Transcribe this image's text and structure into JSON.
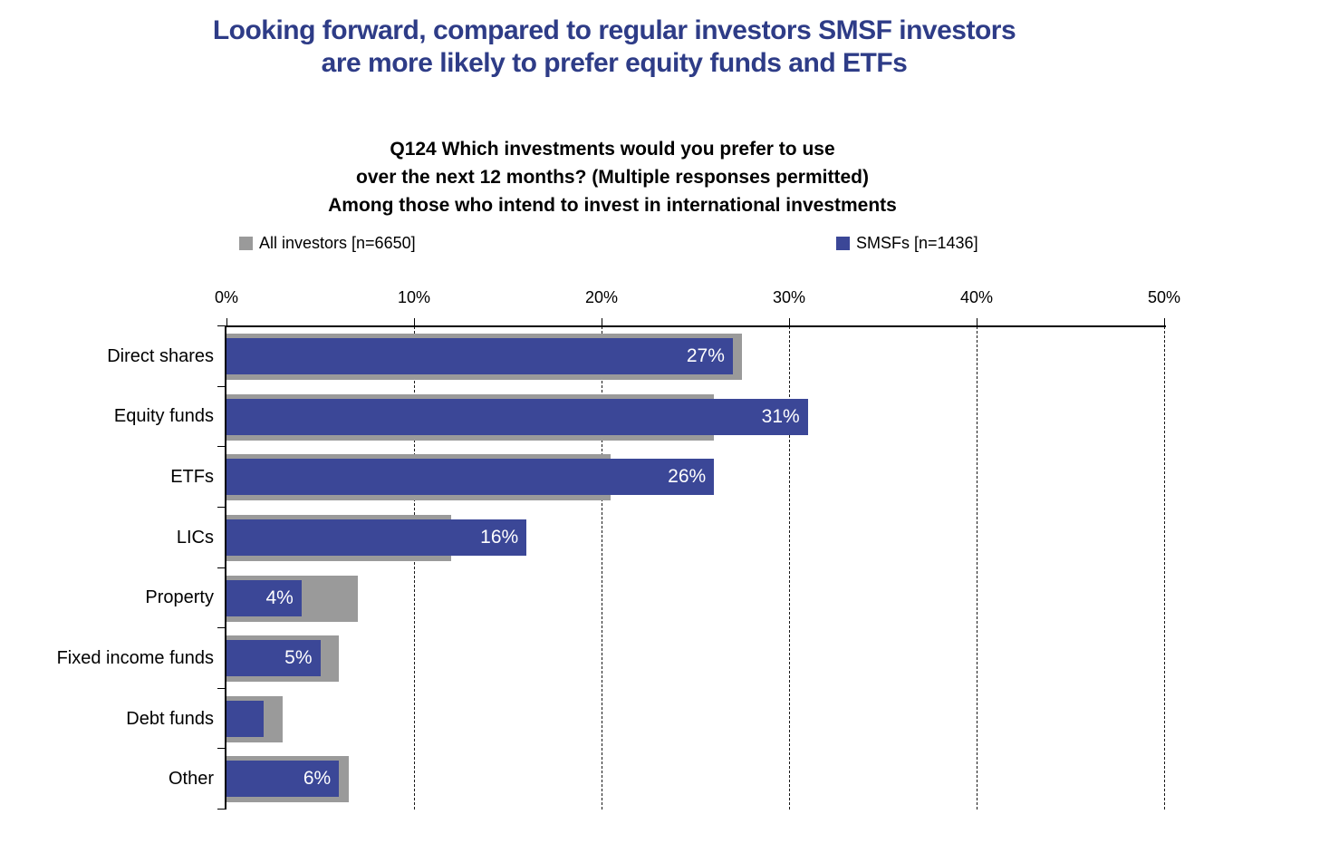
{
  "title": {
    "line1": "Looking forward, compared to regular investors SMSF investors",
    "line2": "are more likely to prefer equity funds and ETFs"
  },
  "subtitle": {
    "line1": "Q124 Which investments would you prefer to use",
    "line2": "over the next 12 months? (Multiple responses permitted)",
    "line3": "Among those who intend to invest in international investments"
  },
  "colors": {
    "all_investors": "#9a9a9a",
    "smsfs": "#3b4797",
    "title": "#2e3c87",
    "axis": "#000000",
    "bar_label": "#ffffff"
  },
  "legend": [
    {
      "label": "All investors [n=6650]",
      "series": "all_investors"
    },
    {
      "label": "SMSFs [n=1436]",
      "series": "smsfs"
    }
  ],
  "chart_data": {
    "type": "bar",
    "orientation": "horizontal",
    "title": "Q124 Which investments would you prefer to use over the next 12 months? (Multiple responses permitted) Among those who intend to invest in international investments",
    "categories": [
      "Direct shares",
      "Equity funds",
      "ETFs",
      "LICs",
      "Property",
      "Fixed income funds",
      "Debt funds",
      "Other"
    ],
    "series": [
      {
        "name": "All investors [n=6650]",
        "color": "#9a9a9a",
        "values": [
          27.5,
          26,
          20.5,
          12,
          7,
          6,
          3,
          6.5
        ],
        "data_labels": [
          "",
          "",
          "",
          "",
          "",
          "",
          "",
          ""
        ]
      },
      {
        "name": "SMSFs [n=1436]",
        "color": "#3b4797",
        "values": [
          27,
          31,
          26,
          16,
          4,
          5,
          2,
          6
        ],
        "data_labels": [
          "27%",
          "31%",
          "26%",
          "16%",
          "4%",
          "5%",
          "",
          "6%"
        ]
      }
    ],
    "x_axis": {
      "position": "top",
      "min": 0,
      "max": 50,
      "tick_values": [
        0,
        10,
        20,
        30,
        40,
        50
      ],
      "tick_labels": [
        "0%",
        "10%",
        "20%",
        "30%",
        "40%",
        "50%"
      ],
      "gridlines": "dashed-vertical"
    },
    "legend_position": "top"
  }
}
